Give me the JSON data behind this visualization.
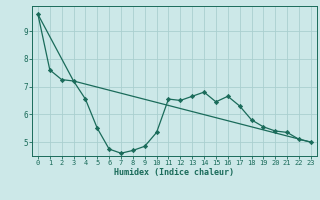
{
  "xlabel": "Humidex (Indice chaleur)",
  "ylabel": "",
  "bg_color": "#cce8e8",
  "line_color": "#1a6b5a",
  "grid_color": "#aacfcf",
  "xlim": [
    -0.5,
    23.5
  ],
  "ylim": [
    4.5,
    9.9
  ],
  "yticks": [
    5,
    6,
    7,
    8,
    9
  ],
  "xticks": [
    0,
    1,
    2,
    3,
    4,
    5,
    6,
    7,
    8,
    9,
    10,
    11,
    12,
    13,
    14,
    15,
    16,
    17,
    18,
    19,
    20,
    21,
    22,
    23
  ],
  "series1_x": [
    0,
    1,
    2,
    3,
    4,
    5,
    6,
    7,
    8,
    9,
    10,
    11,
    12,
    13,
    14,
    15,
    16,
    17,
    18,
    19,
    20,
    21,
    22,
    23
  ],
  "series1_y": [
    9.6,
    7.6,
    7.25,
    7.2,
    6.55,
    5.5,
    4.75,
    4.6,
    4.7,
    4.85,
    5.35,
    6.55,
    6.5,
    6.65,
    6.8,
    6.45,
    6.65,
    6.3,
    5.8,
    5.55,
    5.4,
    5.35,
    5.1,
    5.0
  ],
  "series2_x": [
    0,
    3,
    23
  ],
  "series2_y": [
    9.6,
    7.2,
    5.0
  ],
  "marker": "D",
  "marker_size": 2.2,
  "tick_fontsize": 5.0,
  "xlabel_fontsize": 6.0,
  "linewidth": 0.9
}
